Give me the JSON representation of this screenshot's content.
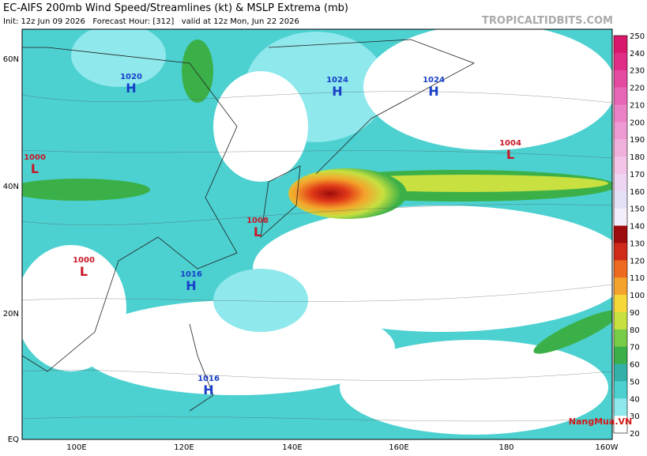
{
  "header": {
    "title": "EC-AIFS 200mb Wind Speed/Streamlines (kt) & MSLP Extrema (mb)",
    "subtitle": "Init: 12z Jun 09 2026   Forecast Hour: [312]   valid at 12z Mon, Jun 22 2026",
    "site": "TROPICALTIDBITS.COM"
  },
  "map": {
    "lat_labels": [
      "60N",
      "40N",
      "20N",
      "EQ"
    ],
    "lon_labels": [
      "100E",
      "120E",
      "140E",
      "160E",
      "180",
      "160W"
    ],
    "centers": [
      {
        "value": "1020",
        "letter": "H"
      },
      {
        "value": "1024",
        "letter": "H"
      },
      {
        "value": "1024",
        "letter": "H"
      },
      {
        "value": "1004",
        "letter": "L"
      },
      {
        "value": "1000",
        "letter": "L"
      },
      {
        "value": "1008",
        "letter": "L"
      },
      {
        "value": "1000",
        "letter": "L"
      },
      {
        "value": "1016",
        "letter": "H"
      },
      {
        "value": "1016",
        "letter": "H"
      }
    ]
  },
  "colorbar": {
    "ticks": [
      250,
      240,
      230,
      220,
      210,
      200,
      190,
      180,
      170,
      160,
      150,
      140,
      130,
      120,
      110,
      100,
      90,
      80,
      70,
      60,
      50,
      40,
      30,
      20
    ],
    "colors": [
      "#d8186a",
      "#e02e86",
      "#e44aa0",
      "#e866b6",
      "#ec82c6",
      "#ee9ad2",
      "#f0b0dc",
      "#f2c4e6",
      "#eed6f2",
      "#e4e0f6",
      "#f4eefa",
      "#9c0c0c",
      "#d02a18",
      "#ee6a20",
      "#f4a42c",
      "#f6d838",
      "#c8e040",
      "#78cc48",
      "#3cb048",
      "#33b0a8",
      "#4cd0d0",
      "#8ee8ec",
      "#ffffff"
    ]
  },
  "watermark": "NangMua.VN"
}
